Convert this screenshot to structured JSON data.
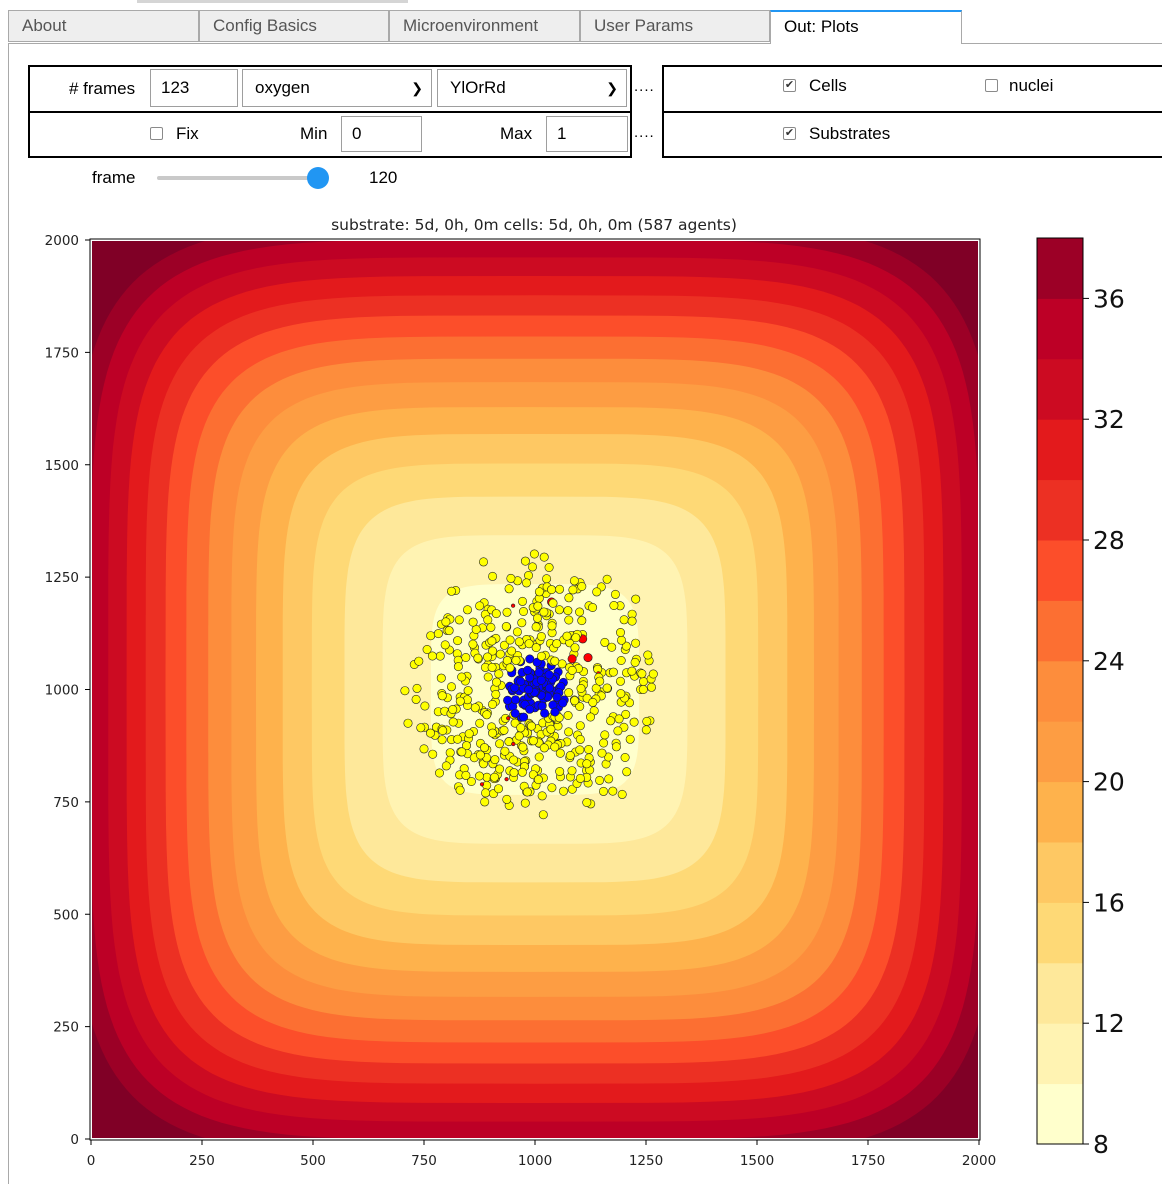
{
  "tabs": [
    "About",
    "Config Basics",
    "Microenvironment",
    "User Params",
    "Out: Plots"
  ],
  "controls": {
    "frames_label": "# frames",
    "frames_value": "123",
    "substrate_selected": "oxygen",
    "colormap_selected": "YlOrRd",
    "fix_label": "Fix",
    "fix_checked": false,
    "min_label": "Min",
    "min_value": "0",
    "max_label": "Max",
    "max_value": "1",
    "ellipsis": "....",
    "cells_label": "Cells",
    "cells_checked": true,
    "nuclei_label": "nuclei",
    "nuclei_checked": false,
    "substrates_label": "Substrates",
    "substrates_checked": true,
    "frame_label": "frame",
    "frame_value": "120",
    "frame_fraction": 0.976
  },
  "chart_data": {
    "type": "heatmap",
    "title": "substrate: 5d, 0h, 0m   cells: 5d, 0h, 0m (587 agents)",
    "xlim": [
      0,
      2000
    ],
    "ylim": [
      0,
      2000
    ],
    "x_ticks": [
      0,
      250,
      500,
      750,
      1000,
      1250,
      1500,
      1750,
      2000
    ],
    "y_ticks": [
      0,
      250,
      500,
      750,
      1000,
      1250,
      1500,
      1750,
      2000
    ],
    "x_tick_labels": [
      "0",
      "250",
      "500",
      "750",
      "1000",
      "1250",
      "1500",
      "1750",
      "2000"
    ],
    "y_tick_labels": [
      "0",
      "250",
      "500",
      "750",
      "1000",
      "1250",
      "1500",
      "1750",
      "2000"
    ],
    "colorbar": {
      "range": [
        8,
        38
      ],
      "ticks": [
        8,
        12,
        16,
        20,
        24,
        28,
        32,
        36
      ],
      "tick_labels": [
        "8",
        "12",
        "16",
        "20",
        "24",
        "28",
        "32",
        "36"
      ],
      "levels": [
        8,
        10,
        12,
        14,
        16,
        18,
        20,
        22,
        24,
        26,
        28,
        30,
        32,
        34,
        36,
        38
      ],
      "colors": [
        "#ffffcc",
        "#fff3b2",
        "#fee89a",
        "#fed976",
        "#fec863",
        "#feb24c",
        "#fd9d43",
        "#fd8d3c",
        "#fc6f32",
        "#fc4e2a",
        "#ec3023",
        "#e31a1c",
        "#cc0b22",
        "#bd0026",
        "#9c0026",
        "#800026"
      ]
    },
    "field": {
      "center": [
        1000,
        1000
      ],
      "min_value": 8,
      "max_value": 38
    },
    "cells": {
      "total_agents": 587,
      "cluster_center": [
        1000,
        1000
      ],
      "cluster_radius": 270,
      "core_radius": 70,
      "colors": {
        "live": "#ffff00",
        "core": "#0000ff",
        "dead": "#ff0000"
      }
    }
  }
}
